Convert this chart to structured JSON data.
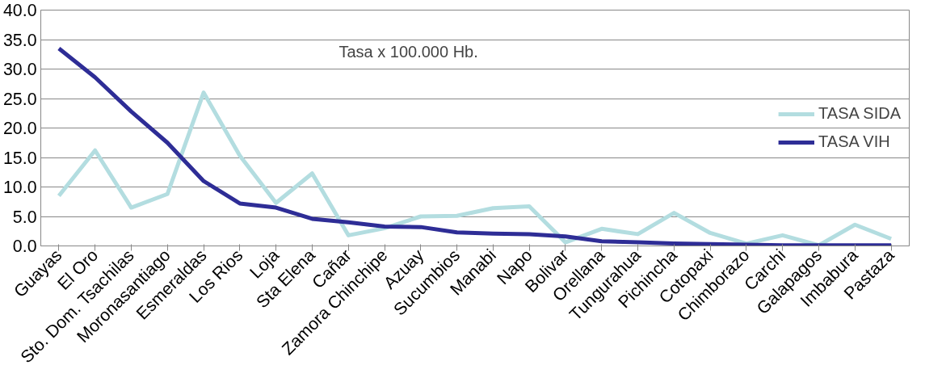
{
  "chart_data": {
    "type": "line",
    "categories": [
      "Guayas",
      "El Oro",
      "Sto. Dom. Tsachilas",
      "Moronasantiago",
      "Esmeraldas",
      "Los Rios",
      "Loja",
      "Sta Elena",
      "Cañar",
      "Zamora Chinchipe",
      "Azuay",
      "Sucumbios",
      "Manabi",
      "Napo",
      "Bolivar",
      "Orellana",
      "Tungurahua",
      "Pichincha",
      "Cotopaxi",
      "Chimborazo",
      "Carchi",
      "Galapagos",
      "Imbabura",
      "Pastaza"
    ],
    "series": [
      {
        "name": "TASA SIDA",
        "color": "#b3dde0",
        "values": [
          8.5,
          16.2,
          6.5,
          8.8,
          26.0,
          15.3,
          7.3,
          12.3,
          1.8,
          3.0,
          5.0,
          5.1,
          6.4,
          6.7,
          0.6,
          2.9,
          2.0,
          5.6,
          2.2,
          0.4,
          1.8,
          0.1,
          3.6,
          1.2
        ]
      },
      {
        "name": "TASA VIH",
        "color": "#2e2d96",
        "values": [
          33.5,
          28.6,
          22.8,
          17.5,
          11.0,
          7.2,
          6.5,
          4.6,
          4.0,
          3.3,
          3.2,
          2.3,
          2.1,
          2.0,
          1.6,
          0.8,
          0.6,
          0.4,
          0.3,
          0.2,
          0.1,
          0.1,
          0.1,
          0.1
        ]
      }
    ],
    "annotations": [
      "Tasa x 100.000 Hb."
    ],
    "ylim": [
      0,
      40
    ],
    "yticks": [
      {
        "value": 0,
        "label": "0.0"
      },
      {
        "value": 5,
        "label": "5.0"
      },
      {
        "value": 10,
        "label": "10.0"
      },
      {
        "value": 15,
        "label": "15.0"
      },
      {
        "value": 20,
        "label": "20.0"
      },
      {
        "value": 25,
        "label": "25.0"
      },
      {
        "value": 30,
        "label": "30.0"
      },
      {
        "value": 35,
        "label": "35.0"
      },
      {
        "value": 40,
        "label": "40.0"
      }
    ],
    "grid": "y",
    "legend": "right",
    "marker": "none",
    "line_style": "solid"
  }
}
